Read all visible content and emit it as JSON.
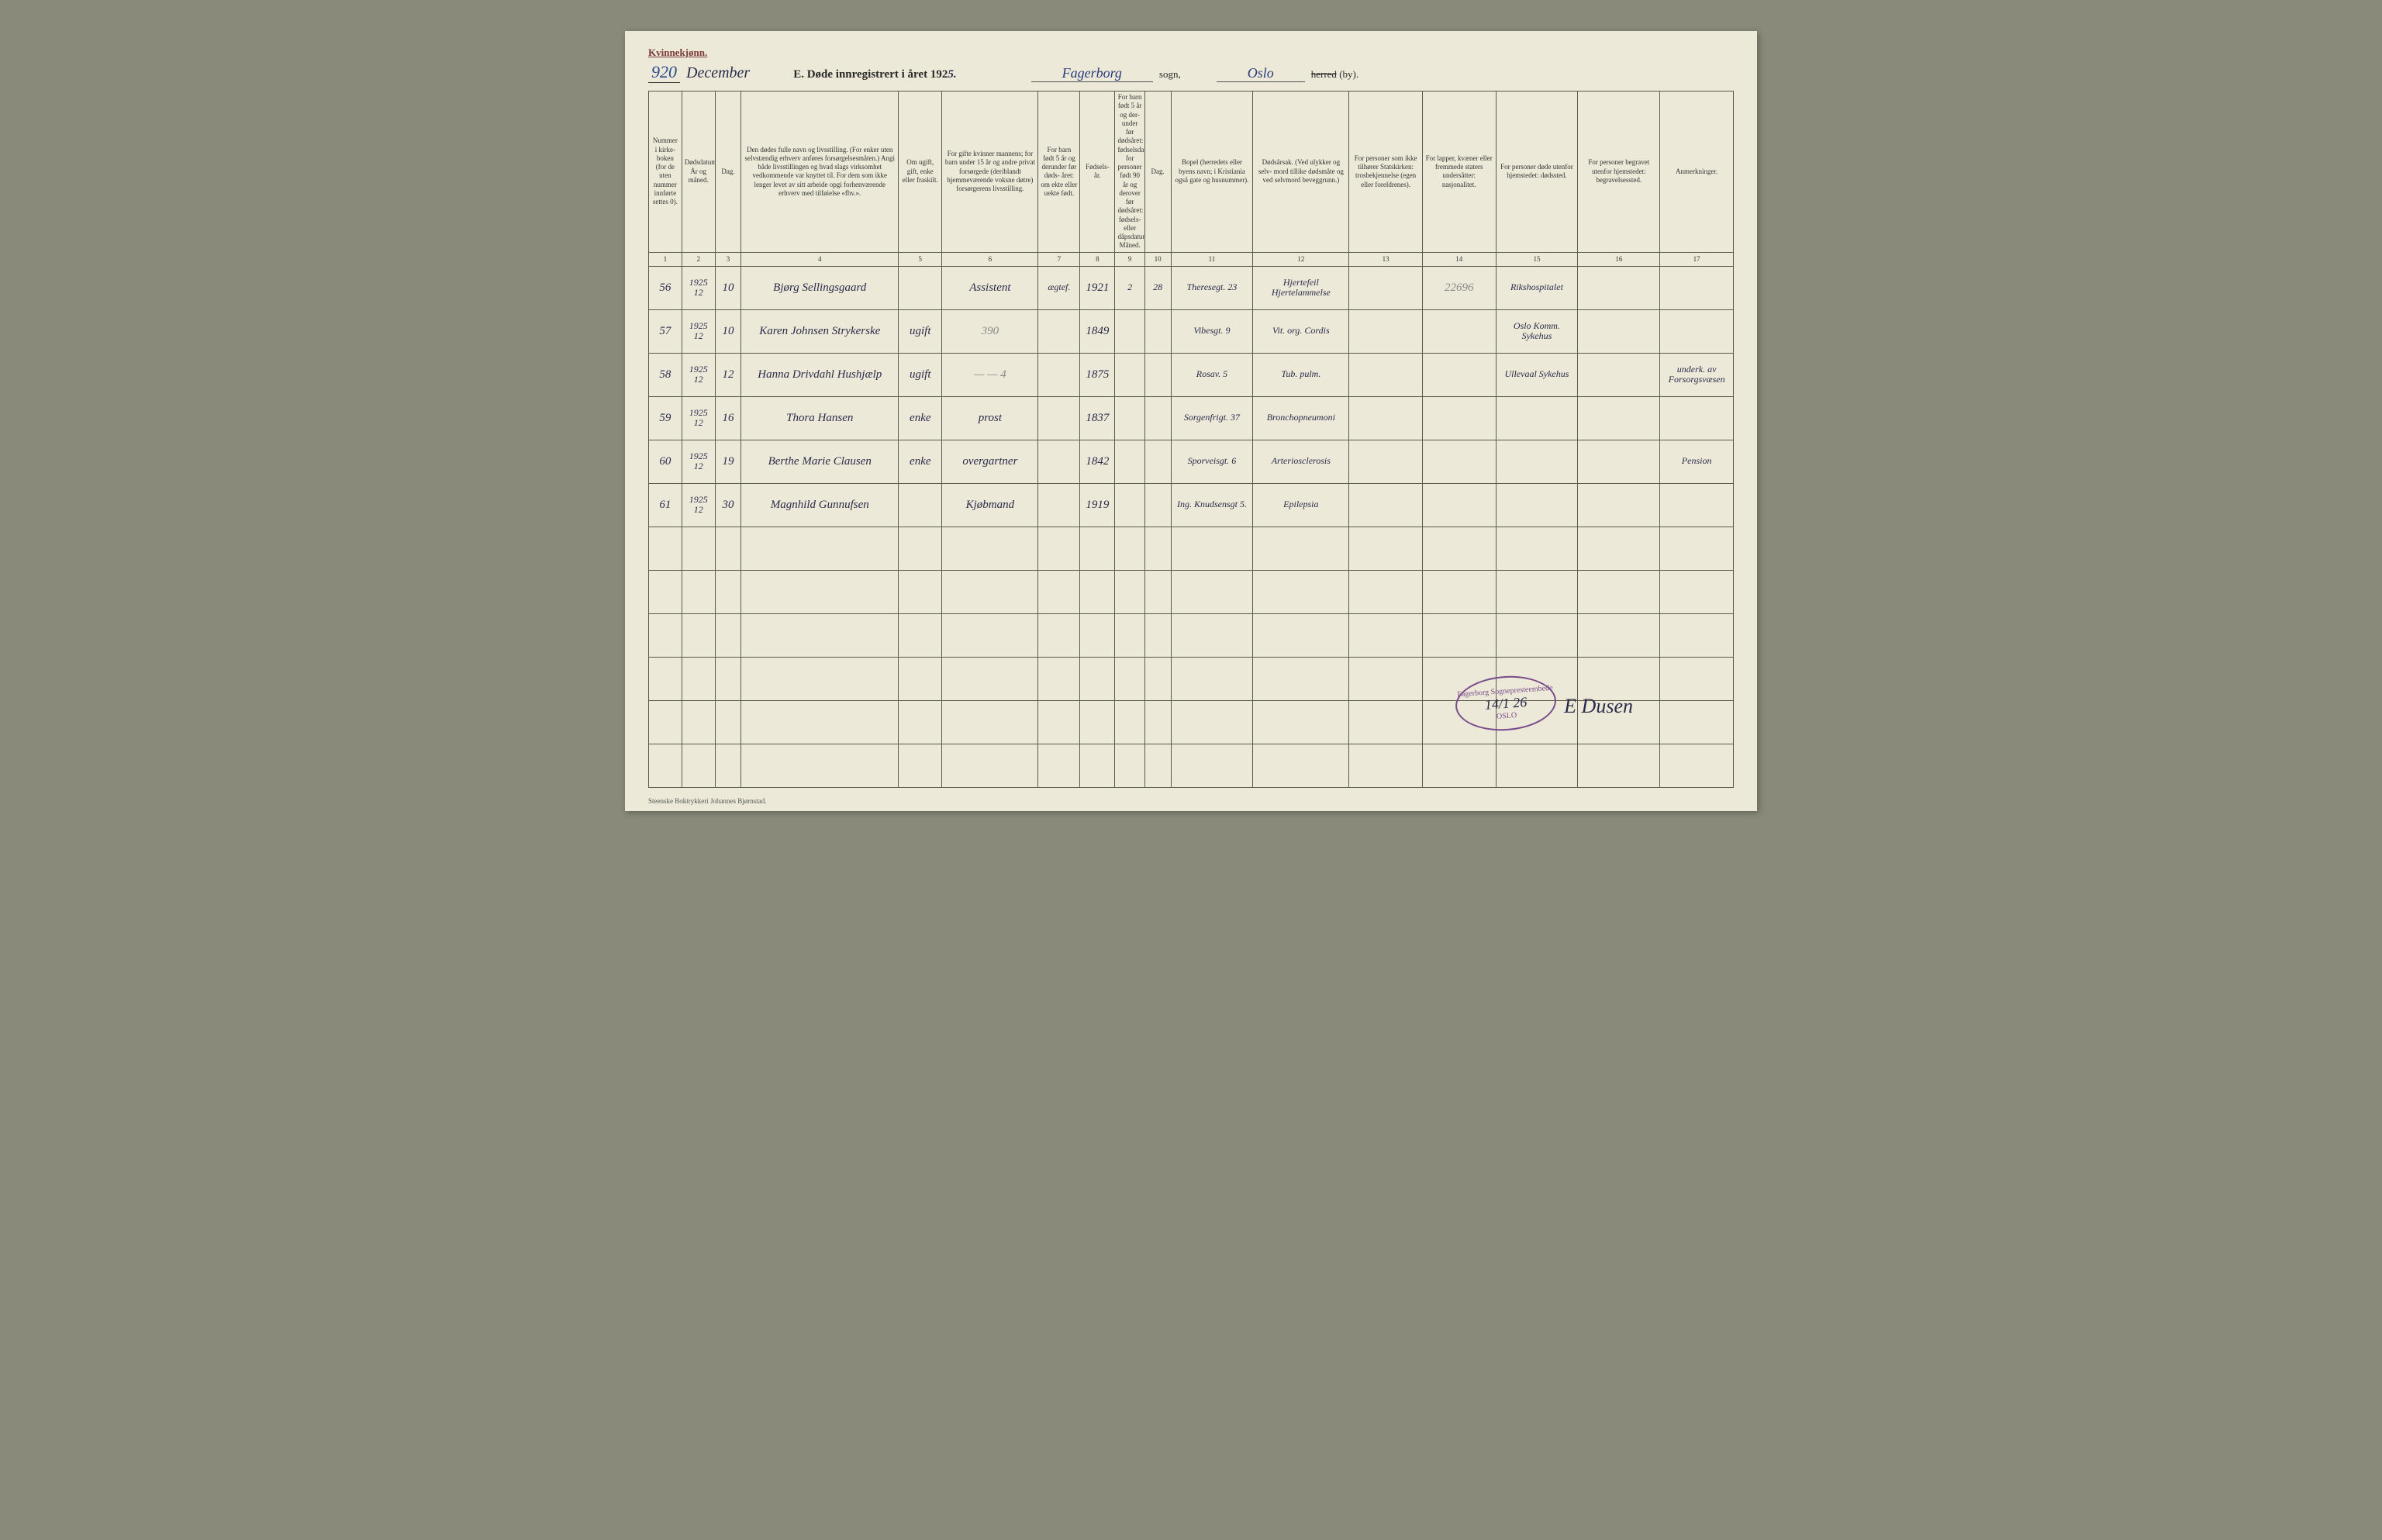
{
  "header": {
    "gender_label": "Kvinnekjønn.",
    "page_number": "920",
    "month": "December",
    "form_title_prefix": "E.  Døde innregistrert i året 192",
    "year_suffix": "5.",
    "parish": "Fagerborg",
    "parish_label": "sogn,",
    "district": "Oslo",
    "district_struck": "herred",
    "district_suffix": "(by)."
  },
  "columns": [
    {
      "num": "1",
      "label": "Nummer i kirke- boken (for de uten nummer innførte settes 0).",
      "w": "c1"
    },
    {
      "num": "2",
      "label": "Dødsdatum. År og måned.",
      "w": "c2"
    },
    {
      "num": "3",
      "label": "Dag.",
      "w": "c3"
    },
    {
      "num": "4",
      "label": "Den dødes fulle navn og livsstilling. (For enker uten selvstændig erhverv anføres forsørgelsesmåten.) Angi både livsstillingen og hvad slags virksomhet vedkommende var knyttet til. For dem som ikke lenger levet av sitt arbeide opgi forhenværende erhverv med tilføielse «fhv.».",
      "w": "c4"
    },
    {
      "num": "5",
      "label": "Om ugift, gift, enke eller fraskilt.",
      "w": "c5"
    },
    {
      "num": "6",
      "label": "For gifte kvinner mannens; for barn under 15 år og andre privat forsørgede (deriblandt hjemmeværende voksne døtre) forsørgerens livsstilling.",
      "w": "c6"
    },
    {
      "num": "7",
      "label": "For barn født 5 år og derunder før døds- året: om ekte eller uekte født.",
      "w": "c7"
    },
    {
      "num": "8",
      "label": "Fødsels- år.",
      "w": "c8"
    },
    {
      "num": "9",
      "label": "For barn født 5 år og der- under før dødsåret: fødselsdatum; for personer født 90 år og derover før dødsåret: fødsels- eller dåpsdatum. Måned.",
      "w": "c9"
    },
    {
      "num": "10",
      "label": "Dag.",
      "w": "c10"
    },
    {
      "num": "11",
      "label": "Bopel (herredets eller byens navn; i Kristiania også gate og husnummer).",
      "w": "c11"
    },
    {
      "num": "12",
      "label": "Dødsårsak. (Ved ulykker og selv- mord tillike dødsmåte og ved selvmord beveggrunn.)",
      "w": "c12"
    },
    {
      "num": "13",
      "label": "For personer som ikke tilhører Statskirken: trosbekjennelse (egen eller foreldrenes).",
      "w": "c13"
    },
    {
      "num": "14",
      "label": "For lapper, kvæner eller fremmede staters undersåtter: nasjonalitet.",
      "w": "c14"
    },
    {
      "num": "15",
      "label": "For personer døde utenfor hjemstedet: dødssted.",
      "w": "c15"
    },
    {
      "num": "16",
      "label": "For personer begravet utenfor hjemstedet: begravelsessted.",
      "w": "c16"
    },
    {
      "num": "17",
      "label": "Anmerkninger.",
      "w": "c17"
    }
  ],
  "rows": [
    {
      "num": "56",
      "year": "1925",
      "month": "12",
      "day": "10",
      "name": "Bjørg Sellingsgaard",
      "status": "",
      "provider": "Assistent",
      "legit": "ægtef.",
      "birth_year": "1921",
      "b_month": "2",
      "b_day": "28",
      "residence": "Theresegt. 23",
      "cause": "Hjertefeil Hjertelammelse",
      "col13": "",
      "col14": "22696",
      "death_place": "Rikshospitalet",
      "burial": "",
      "notes": ""
    },
    {
      "num": "57",
      "year": "1925",
      "month": "12",
      "day": "10",
      "name": "Karen Johnsen Strykerske",
      "status": "ugift",
      "provider": "390",
      "legit": "",
      "birth_year": "1849",
      "b_month": "",
      "b_day": "",
      "residence": "Vibesgt. 9",
      "cause": "Vit. org. Cordis",
      "col13": "",
      "col14": "",
      "death_place": "Oslo Komm. Sykehus",
      "burial": "",
      "notes": ""
    },
    {
      "num": "58",
      "year": "1925",
      "month": "12",
      "day": "12",
      "name": "Hanna Drivdahl Hushjælp",
      "status": "ugift",
      "provider": "— — 4",
      "legit": "",
      "birth_year": "1875",
      "b_month": "",
      "b_day": "",
      "residence": "Rosav. 5",
      "cause": "Tub. pulm.",
      "col13": "",
      "col14": "",
      "death_place": "Ullevaal Sykehus",
      "burial": "",
      "notes": "underk. av Forsorgsvæsen"
    },
    {
      "num": "59",
      "year": "1925",
      "month": "12",
      "day": "16",
      "name": "Thora Hansen",
      "status": "enke",
      "provider": "prost",
      "legit": "",
      "birth_year": "1837",
      "b_month": "",
      "b_day": "",
      "residence": "Sorgenfrigt. 37",
      "cause": "Bronchopneumoni",
      "col13": "",
      "col14": "",
      "death_place": "",
      "burial": "",
      "notes": ""
    },
    {
      "num": "60",
      "year": "1925",
      "month": "12",
      "day": "19",
      "name": "Berthe Marie Clausen",
      "status": "enke",
      "provider": "overgartner",
      "legit": "",
      "birth_year": "1842",
      "b_month": "",
      "b_day": "",
      "residence": "Sporveisgt. 6",
      "cause": "Arteriosclerosis",
      "col13": "",
      "col14": "",
      "death_place": "",
      "burial": "",
      "notes": "Pension"
    },
    {
      "num": "61",
      "year": "1925",
      "month": "12",
      "day": "30",
      "name": "Magnhild Gunnufsen",
      "status": "",
      "provider": "Kjøbmand",
      "legit": "",
      "birth_year": "1919",
      "b_month": "",
      "b_day": "",
      "residence": "Ing. Knudsensgt 5.",
      "cause": "Epilepsia",
      "col13": "",
      "col14": "",
      "death_place": "",
      "burial": "",
      "notes": ""
    }
  ],
  "empty_row_count": 6,
  "stamp": {
    "top_text": "Fagerborg Sognepresteembede",
    "date": "14/1 26",
    "bottom_text": "OSLO"
  },
  "signature": "E Dusen",
  "footer_printer": "Steenske Boktrykkeri Johannes Bjørnstad."
}
